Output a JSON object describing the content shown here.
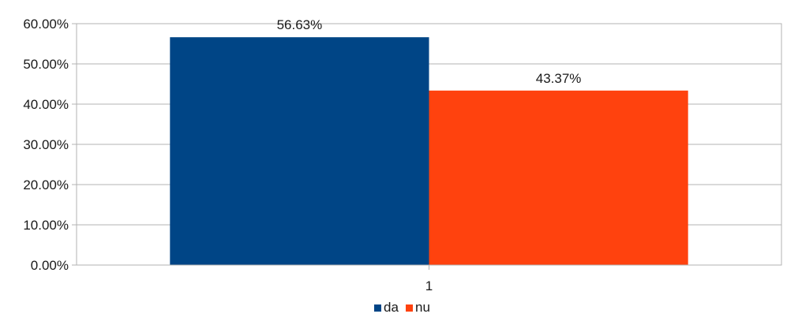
{
  "chart_data": {
    "type": "bar",
    "title": "",
    "xlabel": "",
    "ylabel": "",
    "categories": [
      "1"
    ],
    "series": [
      {
        "name": "da",
        "values": [
          56.63
        ],
        "color": "#004586",
        "label": "56.63%"
      },
      {
        "name": "nu",
        "values": [
          43.37
        ],
        "color": "#FF420E",
        "label": "43.37%"
      }
    ],
    "ylim": [
      0,
      60
    ],
    "yticks": [
      0,
      10,
      20,
      30,
      40,
      50,
      60
    ],
    "ytick_labels": [
      "0.00%",
      "10.00%",
      "20.00%",
      "30.00%",
      "40.00%",
      "50.00%",
      "60.00%"
    ],
    "grid": true,
    "legend_position": "bottom"
  }
}
